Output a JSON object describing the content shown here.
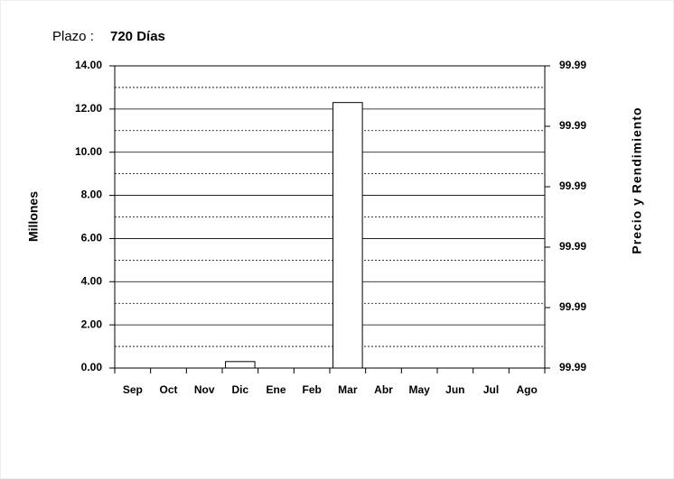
{
  "chart_data": {
    "type": "bar",
    "title_label": "Plazo :",
    "title": "720 Días",
    "categories": [
      "Sep",
      "Oct",
      "Nov",
      "Dic",
      "Ene",
      "Feb",
      "Mar",
      "Abr",
      "May",
      "Jun",
      "Jul",
      "Ago"
    ],
    "values": [
      0,
      0,
      0,
      0.3,
      0,
      0,
      12.3,
      0,
      0,
      0,
      0,
      0
    ],
    "color": "#ffffff",
    "ylim": [
      0,
      14
    ],
    "yticks": [
      {
        "value": 0,
        "label": "0.00"
      },
      {
        "value": 2,
        "label": "2.00"
      },
      {
        "value": 4,
        "label": "4.00"
      },
      {
        "value": 6,
        "label": "6.00"
      },
      {
        "value": 8,
        "label": "8.00"
      },
      {
        "value": 10,
        "label": "10.00"
      },
      {
        "value": 12,
        "label": "12.00"
      },
      {
        "value": 14,
        "label": "14.00"
      }
    ],
    "yminorticks": [
      1,
      3,
      5,
      7,
      9,
      11,
      13
    ],
    "ylabel": "Millones",
    "y2lim": [
      99.986,
      99.996
    ],
    "y2ticks": [
      {
        "value": 99.986,
        "label": "99.99"
      },
      {
        "value": 99.988,
        "label": "99.99"
      },
      {
        "value": 99.99,
        "label": "99.99"
      },
      {
        "value": 99.992,
        "label": "99.99"
      },
      {
        "value": 99.994,
        "label": "99.99"
      },
      {
        "value": 99.996,
        "label": "99.99"
      }
    ],
    "y2label": "Precio y Rendimiento",
    "grid": true
  }
}
